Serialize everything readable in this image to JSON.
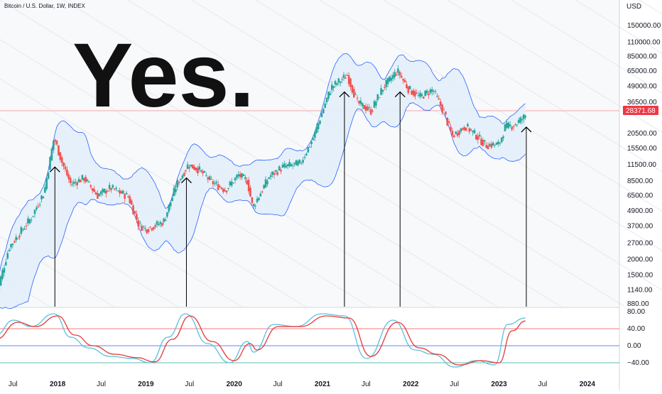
{
  "header": {
    "symbol_title": "Bitcoin / U.S. Dollar, 1W, INDEX"
  },
  "annotation": {
    "big_text": "Yes."
  },
  "price_tag": {
    "value": "28371.68",
    "color": "#f23645"
  },
  "colors": {
    "up": "#26a69a",
    "down": "#ef5350",
    "band": "#2962ff",
    "band_fill": "#e3eef9",
    "stoch_k": "#5bc0de",
    "stoch_d": "#e53935",
    "line_upper": "#ef5350",
    "line_mid": "#2962ff",
    "line_lower": "#26a69a",
    "arrow": "#000000"
  },
  "chart_data": {
    "type": "candlestick",
    "price_axis": {
      "unit": "USD",
      "scale": "log",
      "ticks": [
        "150000.00",
        "110000.00",
        "85000.00",
        "65000.00",
        "49000.00",
        "36500.00",
        "20500.00",
        "15500.00",
        "11500.00",
        "8500.00",
        "6500.00",
        "4900.00",
        "3700.00",
        "2700.00",
        "2000.00",
        "1500.00",
        "1140.00",
        "880.00"
      ]
    },
    "time_axis": {
      "ticks": [
        {
          "label": "Jul",
          "year": false
        },
        {
          "label": "2018",
          "year": true
        },
        {
          "label": "Jul",
          "year": false
        },
        {
          "label": "2019",
          "year": true
        },
        {
          "label": "Jul",
          "year": false
        },
        {
          "label": "2020",
          "year": true
        },
        {
          "label": "Jul",
          "year": false
        },
        {
          "label": "2021",
          "year": true
        },
        {
          "label": "Jul",
          "year": false
        },
        {
          "label": "2022",
          "year": true
        },
        {
          "label": "Jul",
          "year": false
        },
        {
          "label": "2023",
          "year": true
        },
        {
          "label": "Jul",
          "year": false
        },
        {
          "label": "2024",
          "year": true
        }
      ]
    },
    "price_path": [
      {
        "t": 2017.3,
        "p": 1000
      },
      {
        "t": 2017.45,
        "p": 2500
      },
      {
        "t": 2017.7,
        "p": 4300
      },
      {
        "t": 2017.85,
        "p": 7000
      },
      {
        "t": 2017.96,
        "p": 19000
      },
      {
        "t": 2018.05,
        "p": 12000
      },
      {
        "t": 2018.15,
        "p": 8000
      },
      {
        "t": 2018.3,
        "p": 9000
      },
      {
        "t": 2018.45,
        "p": 6500
      },
      {
        "t": 2018.6,
        "p": 7500
      },
      {
        "t": 2018.8,
        "p": 6400
      },
      {
        "t": 2018.92,
        "p": 3800
      },
      {
        "t": 2019.0,
        "p": 3500
      },
      {
        "t": 2019.2,
        "p": 4000
      },
      {
        "t": 2019.35,
        "p": 8000
      },
      {
        "t": 2019.48,
        "p": 11500
      },
      {
        "t": 2019.6,
        "p": 10500
      },
      {
        "t": 2019.75,
        "p": 8300
      },
      {
        "t": 2019.9,
        "p": 7200
      },
      {
        "t": 2020.05,
        "p": 9500
      },
      {
        "t": 2020.15,
        "p": 8500
      },
      {
        "t": 2020.21,
        "p": 5200
      },
      {
        "t": 2020.4,
        "p": 9300
      },
      {
        "t": 2020.55,
        "p": 11000
      },
      {
        "t": 2020.75,
        "p": 11800
      },
      {
        "t": 2020.9,
        "p": 19000
      },
      {
        "t": 2021.02,
        "p": 34000
      },
      {
        "t": 2021.1,
        "p": 48000
      },
      {
        "t": 2021.28,
        "p": 60000
      },
      {
        "t": 2021.4,
        "p": 36000
      },
      {
        "t": 2021.55,
        "p": 31000
      },
      {
        "t": 2021.68,
        "p": 47000
      },
      {
        "t": 2021.85,
        "p": 65000
      },
      {
        "t": 2021.97,
        "p": 47000
      },
      {
        "t": 2022.1,
        "p": 40000
      },
      {
        "t": 2022.25,
        "p": 46000
      },
      {
        "t": 2022.38,
        "p": 30000
      },
      {
        "t": 2022.47,
        "p": 19500
      },
      {
        "t": 2022.62,
        "p": 23500
      },
      {
        "t": 2022.75,
        "p": 19500
      },
      {
        "t": 2022.85,
        "p": 16500
      },
      {
        "t": 2023.0,
        "p": 16700
      },
      {
        "t": 2023.07,
        "p": 23000
      },
      {
        "t": 2023.18,
        "p": 24000
      },
      {
        "t": 2023.3,
        "p": 28400
      }
    ],
    "stoch_k": [
      {
        "t": 2017.3,
        "v": 25
      },
      {
        "t": 2017.5,
        "v": 60
      },
      {
        "t": 2017.7,
        "v": 45
      },
      {
        "t": 2017.96,
        "v": 75
      },
      {
        "t": 2018.15,
        "v": 20
      },
      {
        "t": 2018.35,
        "v": -5
      },
      {
        "t": 2018.6,
        "v": -25
      },
      {
        "t": 2018.85,
        "v": -30
      },
      {
        "t": 2019.05,
        "v": -40
      },
      {
        "t": 2019.25,
        "v": 20
      },
      {
        "t": 2019.45,
        "v": 75
      },
      {
        "t": 2019.7,
        "v": 5
      },
      {
        "t": 2019.95,
        "v": -40
      },
      {
        "t": 2020.15,
        "v": 10
      },
      {
        "t": 2020.22,
        "v": -15
      },
      {
        "t": 2020.45,
        "v": 50
      },
      {
        "t": 2020.7,
        "v": 45
      },
      {
        "t": 2021.0,
        "v": 75
      },
      {
        "t": 2021.25,
        "v": 70
      },
      {
        "t": 2021.5,
        "v": -30
      },
      {
        "t": 2021.8,
        "v": 60
      },
      {
        "t": 2022.05,
        "v": -10
      },
      {
        "t": 2022.25,
        "v": -20
      },
      {
        "t": 2022.5,
        "v": -50
      },
      {
        "t": 2022.75,
        "v": -35
      },
      {
        "t": 2022.95,
        "v": -45
      },
      {
        "t": 2023.1,
        "v": 50
      },
      {
        "t": 2023.3,
        "v": 65
      }
    ],
    "stoch_d": [
      {
        "t": 2017.3,
        "v": 15
      },
      {
        "t": 2017.55,
        "v": 55
      },
      {
        "t": 2017.75,
        "v": 45
      },
      {
        "t": 2018.0,
        "v": 70
      },
      {
        "t": 2018.2,
        "v": 25
      },
      {
        "t": 2018.4,
        "v": 0
      },
      {
        "t": 2018.65,
        "v": -20
      },
      {
        "t": 2018.9,
        "v": -28
      },
      {
        "t": 2019.1,
        "v": -38
      },
      {
        "t": 2019.3,
        "v": 15
      },
      {
        "t": 2019.5,
        "v": 70
      },
      {
        "t": 2019.75,
        "v": 10
      },
      {
        "t": 2020.0,
        "v": -35
      },
      {
        "t": 2020.18,
        "v": 5
      },
      {
        "t": 2020.26,
        "v": -10
      },
      {
        "t": 2020.5,
        "v": 45
      },
      {
        "t": 2020.75,
        "v": 45
      },
      {
        "t": 2021.05,
        "v": 70
      },
      {
        "t": 2021.3,
        "v": 65
      },
      {
        "t": 2021.55,
        "v": -25
      },
      {
        "t": 2021.85,
        "v": 55
      },
      {
        "t": 2022.1,
        "v": -5
      },
      {
        "t": 2022.3,
        "v": -20
      },
      {
        "t": 2022.55,
        "v": -45
      },
      {
        "t": 2022.8,
        "v": -35
      },
      {
        "t": 2023.0,
        "v": -40
      },
      {
        "t": 2023.15,
        "v": 35
      },
      {
        "t": 2023.3,
        "v": 58
      }
    ],
    "stoch_axis": {
      "ticks": [
        "80.00",
        "40.00",
        "0.00",
        "−40.00"
      ],
      "levels": [
        40,
        0,
        -40
      ]
    },
    "arrows": [
      {
        "t": 2017.97,
        "p": 11000
      },
      {
        "t": 2019.46,
        "p": 9000
      },
      {
        "t": 2021.25,
        "p": 44000
      },
      {
        "t": 2021.88,
        "p": 44000
      },
      {
        "t": 2023.31,
        "p": 23000
      }
    ]
  }
}
